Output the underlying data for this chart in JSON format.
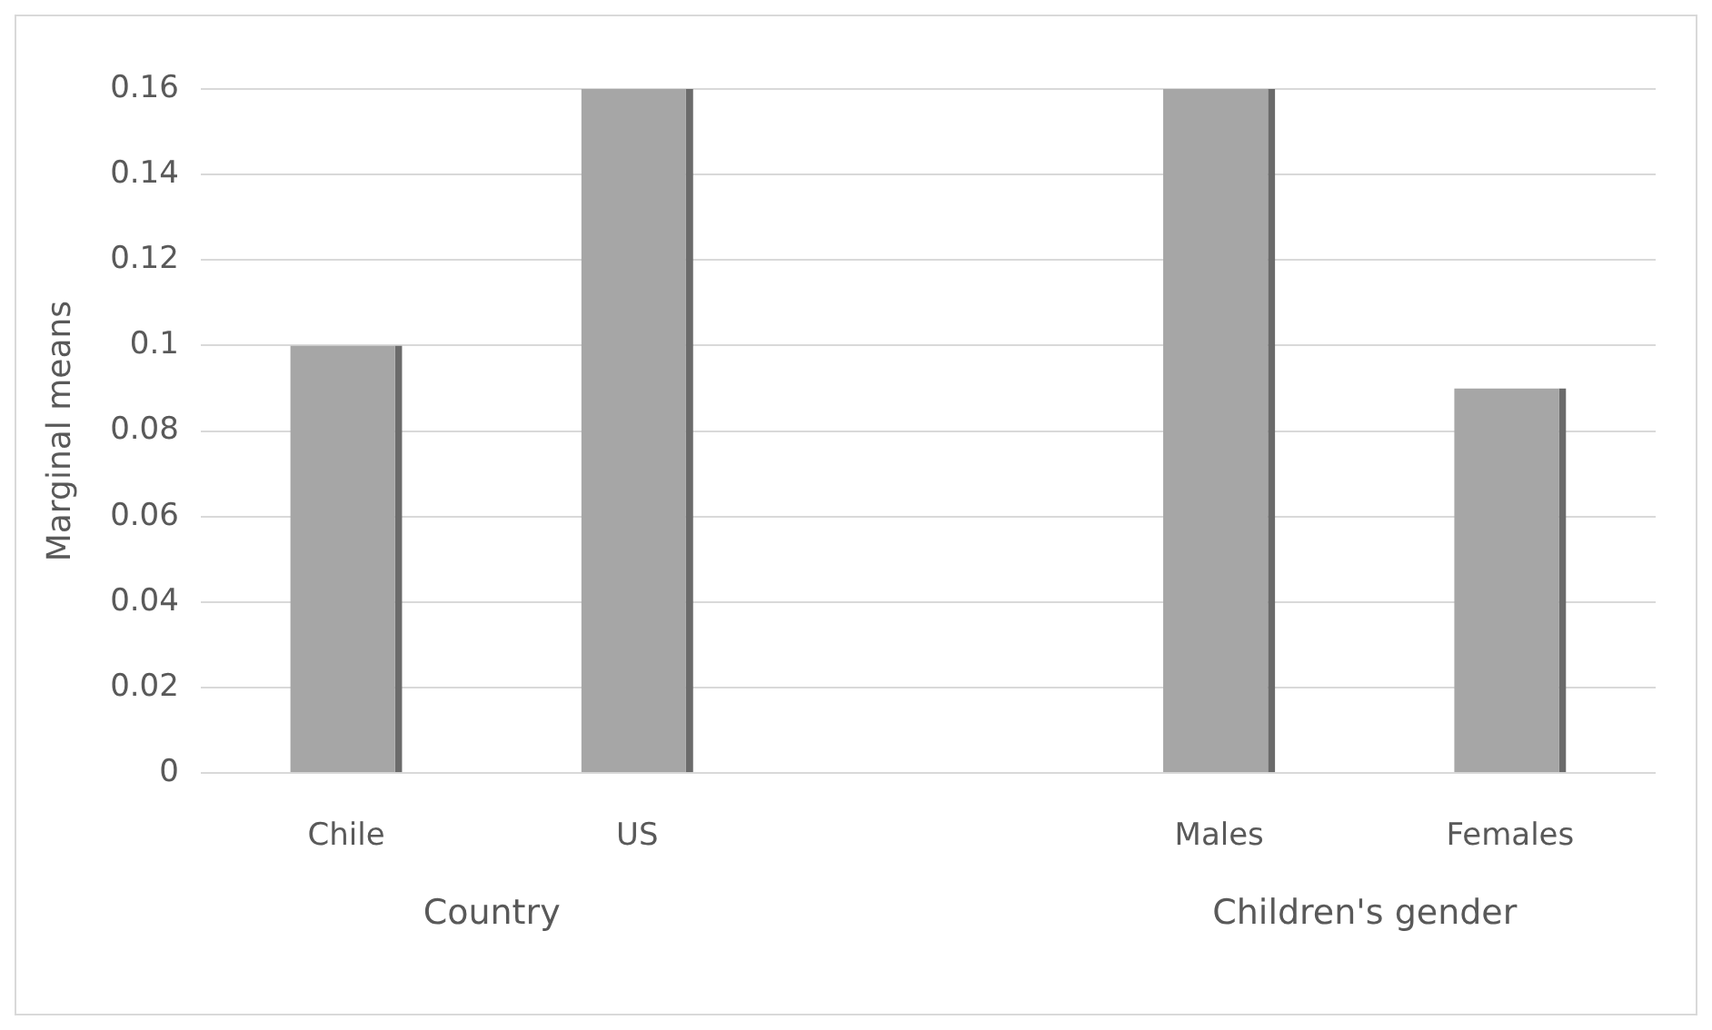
{
  "chart_data": {
    "type": "bar",
    "ylabel": "Marginal means",
    "categories": [
      "Chile",
      "US",
      null,
      "Males",
      "Females"
    ],
    "values": [
      0.1,
      0.16,
      null,
      0.16,
      0.09
    ],
    "color": "#a6a6a6",
    "ylim": [
      0,
      0.16
    ],
    "yticks": [
      0,
      0.02,
      0.04,
      0.06,
      0.08,
      0.1,
      0.12,
      0.14,
      0.16
    ],
    "grid": "y",
    "annotations": [
      "Country",
      "Children's gender"
    ]
  }
}
